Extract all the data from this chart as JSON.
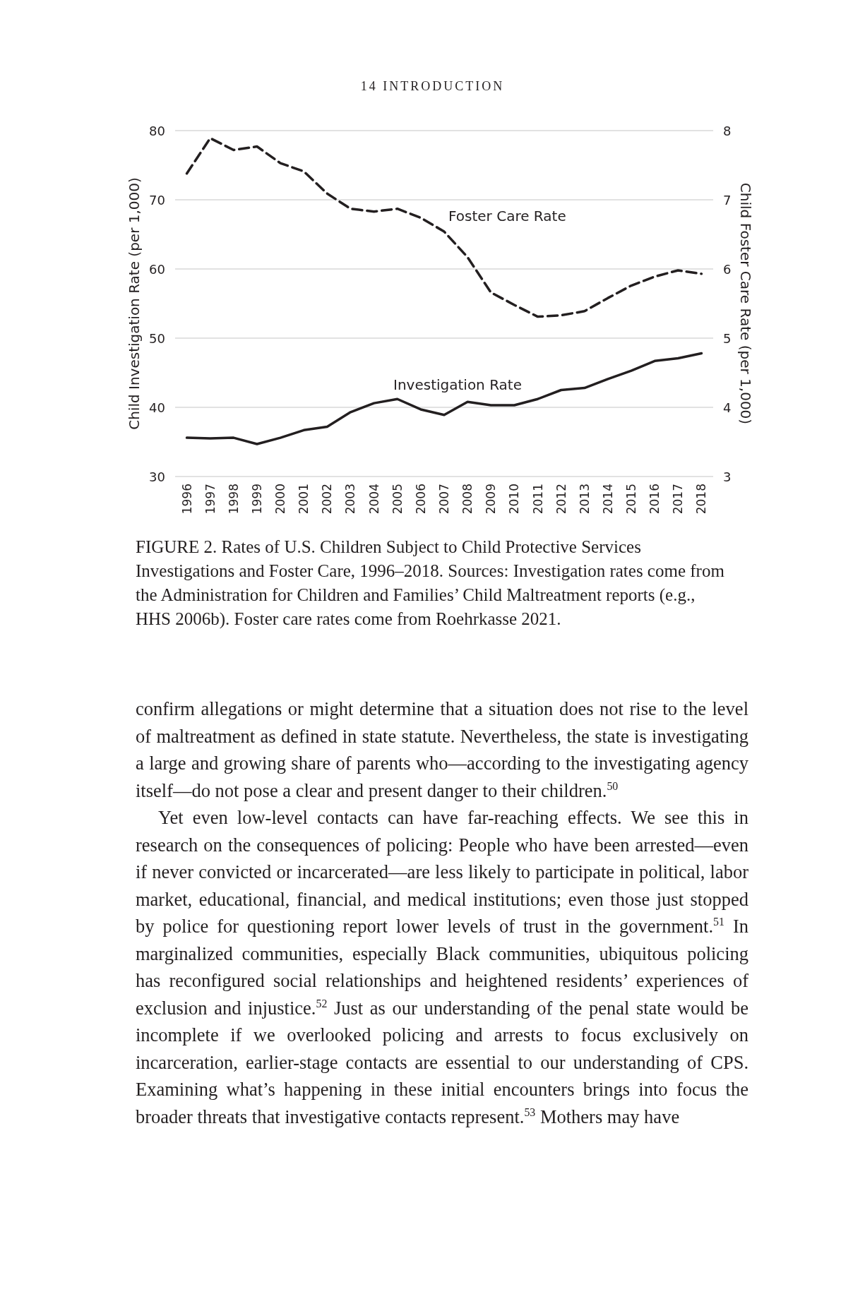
{
  "chart_data": {
    "type": "line",
    "title": "FIGURE 2. Rates of U.S. Children Subject to Child Protective Services Investigations and Foster Care, 1996–2018.",
    "ylabel": "Child Investigation Rate (per 1,000)",
    "y2label": "Child Foster Care Rate (per 1,000)",
    "categories": [
      "1996",
      "1997",
      "1998",
      "1999",
      "2000",
      "2001",
      "2002",
      "2003",
      "2004",
      "2005",
      "2006",
      "2007",
      "2008",
      "2009",
      "2010",
      "2011",
      "2012",
      "2013",
      "2014",
      "2015",
      "2016",
      "2017",
      "2018"
    ],
    "series": [
      {
        "name": "Foster Care Rate",
        "color": "#231f20",
        "axis": "y2",
        "line_style": "dashed",
        "values": [
          7.38,
          7.89,
          7.72,
          7.77,
          7.53,
          7.41,
          7.09,
          6.87,
          6.83,
          6.87,
          6.74,
          6.54,
          6.17,
          5.66,
          5.48,
          5.31,
          5.33,
          5.39,
          5.58,
          5.76,
          5.89,
          5.98,
          5.93
        ]
      },
      {
        "name": "Investigation Rate",
        "color": "#231f20",
        "axis": "y",
        "line_style": "solid",
        "values": [
          35.6,
          35.5,
          35.6,
          34.7,
          35.6,
          36.7,
          37.2,
          39.3,
          40.6,
          41.2,
          39.7,
          38.9,
          40.8,
          40.3,
          40.3,
          41.2,
          42.5,
          42.8,
          44.1,
          45.3,
          46.7,
          47.1,
          47.8
        ]
      }
    ],
    "ylim": [
      30,
      80
    ],
    "yticks": [
      30,
      40,
      50,
      60,
      70,
      80
    ],
    "y2lim": [
      3,
      8
    ],
    "y2ticks": [
      3,
      4,
      5,
      6,
      7,
      8
    ],
    "grid": "y",
    "marker": "none",
    "annotations": [
      "14 INTRODUCTION",
      "Sources: Investigation rates come from the Administration for Children and Families’ Child Maltreatment reports (e.g., HHS 2006b). Foster care rates come from Roehrkasse 2021.",
      "confirm allegations or might determine that a situation does not rise to the level of maltreatment as defined in state statute. Nevertheless, the state is investigating a large and growing share of parents who—according to the investigating agency itself—do not pose a clear and present danger to their children.$^{50}$",
      "Yet even low-level contacts can have far-reaching effects. We see this in research on the consequences of policing: People who have been arrested—even if never convicted or incarcerated—are less likely to participate in political, labor market, educational, financial, and medical institutions; even those just stopped by police for questioning report lower levels of trust in the government.$^{51}$ In marginalized communities, especially Black communities, ubiquitous policing has reconfigured social relationships and heightened residents’ experiences of exclusion and injustice.$^{52}$ Just as our understanding of the penal state would be incomplete if we overlooked policing and arrests to focus exclusively on incarceration, earlier-stage contacts are essential to our understanding of CPS. Examining what’s happening in these initial encounters brings into focus the broader threats that investigative contacts represent.$^{53}$ Mothers may have"
    ]
  }
}
